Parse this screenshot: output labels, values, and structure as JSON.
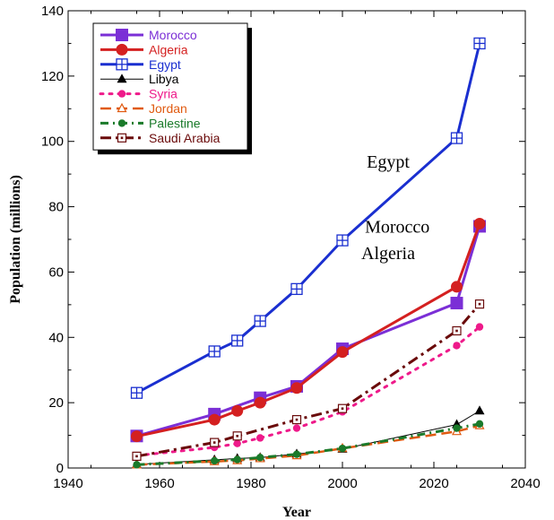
{
  "chart_data": {
    "type": "line",
    "xlabel": "Year",
    "ylabel": "Population (millions)",
    "xlim": [
      1940,
      2040
    ],
    "ylim": [
      0,
      140
    ],
    "xticks": [
      1940,
      1960,
      1980,
      2000,
      2020,
      2040
    ],
    "yticks": [
      0,
      20,
      40,
      60,
      80,
      100,
      120,
      140
    ],
    "legend_position": "top-left",
    "series": [
      {
        "name": "Morocco",
        "color": "#7b2fd6",
        "marker": "filled-square",
        "dash": "solid",
        "width": 3,
        "x": [
          1955,
          1972,
          1982,
          1990,
          2000,
          2025,
          2030
        ],
        "y": [
          9.8,
          16.5,
          21.5,
          25,
          36.5,
          50.5,
          74
        ]
      },
      {
        "name": "Algeria",
        "color": "#d42020",
        "marker": "filled-circle",
        "dash": "solid",
        "width": 3,
        "x": [
          1955,
          1972,
          1977,
          1982,
          1990,
          2000,
          2025,
          2030
        ],
        "y": [
          9.7,
          14.8,
          17.5,
          20,
          24.5,
          35.5,
          55.5,
          74.8
        ]
      },
      {
        "name": "Egypt",
        "color": "#1a2fd0",
        "marker": "crossed-square",
        "dash": "solid",
        "width": 3,
        "x": [
          1955,
          1972,
          1977,
          1982,
          1990,
          2000,
          2025,
          2030
        ],
        "y": [
          23,
          35.7,
          39,
          45,
          54.8,
          69.7,
          101,
          130
        ]
      },
      {
        "name": "Libya",
        "color": "#000000",
        "marker": "filled-triangle",
        "dash": "solid",
        "width": 1,
        "x": [
          1955,
          1972,
          1977,
          1982,
          1990,
          2000,
          2025,
          2030
        ],
        "y": [
          1.1,
          2.5,
          2.9,
          3.2,
          4.3,
          5.8,
          13.3,
          17.5
        ]
      },
      {
        "name": "Syria",
        "color": "#ee1a8a",
        "marker": "filled-circle-small",
        "dash": "3,7",
        "width": 3,
        "x": [
          1955,
          1972,
          1977,
          1982,
          1990,
          2000,
          2025,
          2030
        ],
        "y": [
          3.8,
          6.3,
          7.5,
          9.2,
          12.2,
          17.2,
          37.5,
          43.2
        ]
      },
      {
        "name": "Jordan",
        "color": "#e05a10",
        "marker": "open-triangle",
        "dash": "12,6",
        "width": 2.5,
        "x": [
          1955,
          1972,
          1977,
          1982,
          1990,
          2000,
          2025,
          2030
        ],
        "y": [
          1.0,
          2.0,
          2.3,
          2.9,
          3.8,
          6.0,
          11.2,
          13
        ]
      },
      {
        "name": "Palestine",
        "color": "#1a7a2a",
        "marker": "filled-circle-small",
        "dash": "9,5,2,5",
        "width": 3,
        "x": [
          1955,
          1972,
          1977,
          1982,
          1990,
          2000,
          2025,
          2030
        ],
        "y": [
          1.0,
          2.2,
          2.6,
          3.2,
          4.2,
          6.0,
          12.2,
          13.5
        ]
      },
      {
        "name": "Saudi Arabia",
        "color": "#6a0a0a",
        "marker": "open-square-dot",
        "dash": "12,5,3,5",
        "width": 3,
        "x": [
          1955,
          1972,
          1977,
          1990,
          2000,
          2025,
          2030
        ],
        "y": [
          3.6,
          7.8,
          9.8,
          14.8,
          18.2,
          42,
          50.2
        ]
      }
    ],
    "annotations": [
      {
        "text": "Egypt",
        "x": 2010,
        "y": 92
      },
      {
        "text": "Morocco",
        "x": 2012,
        "y": 72
      },
      {
        "text": "Algeria",
        "x": 2010,
        "y": 64
      }
    ]
  }
}
